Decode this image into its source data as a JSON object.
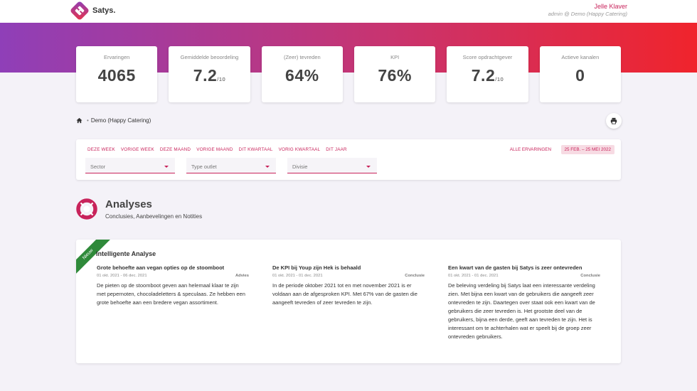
{
  "header": {
    "brand": "Satys.",
    "user_name": "Jelle Klaver",
    "user_role": "admin @ Demo (Happy Catering)"
  },
  "kpis": [
    {
      "label": "Ervaringen",
      "value": "4065",
      "suffix": ""
    },
    {
      "label": "Gemiddelde beoordeling",
      "value": "7.2",
      "suffix": "/10"
    },
    {
      "label": "(Zeer) tevreden",
      "value": "64%",
      "suffix": ""
    },
    {
      "label": "KPI",
      "value": "76%",
      "suffix": ""
    },
    {
      "label": "Score opdrachtgever",
      "value": "7.2",
      "suffix": "/10"
    },
    {
      "label": "Actieve kanalen",
      "value": "0",
      "suffix": ""
    }
  ],
  "breadcrumb": {
    "separator": "•",
    "current": "Demo (Happy Catering)"
  },
  "filters": {
    "periods": [
      "DEZE WEEK",
      "VORIGE WEEK",
      "DEZE MAAND",
      "VORIGE MAAND",
      "DIT KWARTAAL",
      "VORIG KWARTAAL",
      "DIT JAAR"
    ],
    "all_experiences": "ALLE ERVARINGEN",
    "date_range": "25 FEB. – 25 MEI 2022",
    "selects": [
      "Sector",
      "Type outlet",
      "Divisie"
    ]
  },
  "section": {
    "title": "Analyses",
    "subtitle": "Conclusies, Aanbevelingen en Notities"
  },
  "card": {
    "ribbon": "Nieuw",
    "title": "Intelligente Analyse",
    "articles": [
      {
        "title": "Grote behoefte aan vegan opties op de stoomboot",
        "date": "01 okt. 2021 - 06 dec. 2021",
        "tag": "Advies",
        "body": "De pieten op de stoomboot geven aan helemaal klaar te zijn met pepernoten, chocoladeletters & speculaas. Ze hebben een grote behoefte aan een bredere vegan assortiment."
      },
      {
        "title": "De KPI bij Youp zijn Hek is behaald",
        "date": "01 okt. 2021 - 01 dec. 2021",
        "tag": "Conclusie",
        "body": "In de periode oktober 2021 tot en met november 2021 is er voldaan aan de afgesproken KPI. Met 67% van de gasten die aangeeft tevreden of zeer tevreden te zijn."
      },
      {
        "title": "Een kwart van de gasten bij Satys is zeer ontevreden",
        "date": "01 okt. 2021 - 01 dec. 2021",
        "tag": "Conclusie",
        "body": "De beleving verdeling bij Satys laat een interessante verdeling zien. Met bijna een kwart van de gebruikers die aangeeft zeer ontevreden te zijn. Daartegen over staat ook een kwart van de gebruikers die zeer tevreden is. Het grootste deel van de gebruikers, bijna een derde, geeft aan tevreden te zijn. Het is interessant om te achterhalen wat er speelt bij de groep zeer ontevreden gebruikers."
      }
    ]
  }
}
